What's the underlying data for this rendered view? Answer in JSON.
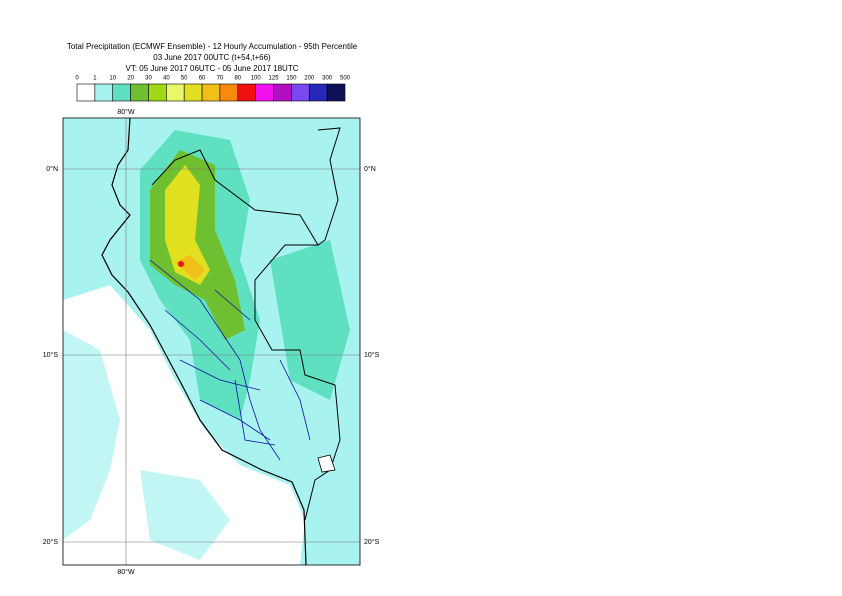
{
  "header": {
    "title": [
      "Total Precipitation (ECMWF Ensemble) - 12 Hourly Accumulation - 95th Percentile",
      "03 June 2017 00UTC (t+54,t+66)",
      "VT: 05 June 2017 06UTC - 05 June 2017 18UTC"
    ]
  },
  "legend": {
    "labels": [
      "0",
      "1",
      "10",
      "20",
      "30",
      "40",
      "50",
      "60",
      "70",
      "80",
      "100",
      "125",
      "150",
      "200",
      "300",
      "500"
    ],
    "colors": [
      "#ffffff",
      "#a8f2f0",
      "#5fe0c0",
      "#6ec030",
      "#a0d818",
      "#e8f868",
      "#e0e020",
      "#f0c018",
      "#f88a10",
      "#f01010",
      "#f010f0",
      "#b010c0",
      "#7848f0",
      "#2828b8",
      "#101058"
    ]
  },
  "map": {
    "lon_labels": [
      "80°W"
    ],
    "lat_labels": [
      "0°N",
      "10°S",
      "20°S"
    ]
  }
}
